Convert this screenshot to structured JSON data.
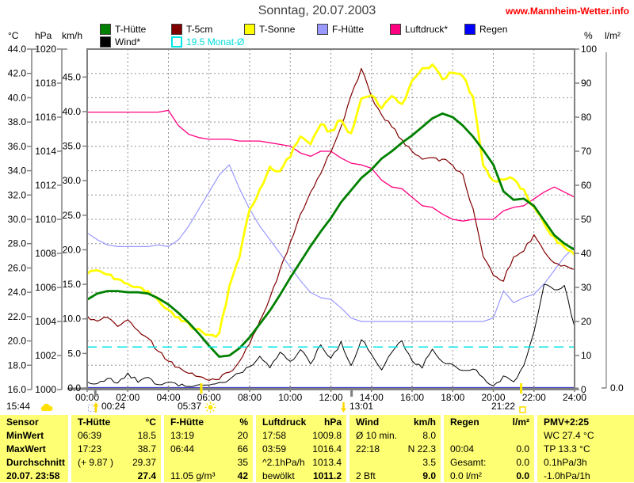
{
  "header": {
    "title": "Sonntag, 20.07.2003",
    "site": "www.Mannheim-Wetter.info"
  },
  "units": {
    "celsius": "°C",
    "hpa": "hPa",
    "kmh": "km/h",
    "percent": "%",
    "lm2": "l/m²"
  },
  "legend": {
    "row1": [
      {
        "label": "T-Hütte",
        "color": "#008000"
      },
      {
        "label": "T-5cm",
        "color": "#800000"
      },
      {
        "label": "T-Sonne",
        "color": "#FFFF00"
      },
      {
        "label": "F-Hütte",
        "color": "#9999FF"
      },
      {
        "label": "Luftdruck*",
        "color": "#FF0080"
      },
      {
        "label": "Regen",
        "color": "#0000FF"
      }
    ],
    "row2": [
      {
        "label": "Wind*",
        "color": "#000000"
      },
      {
        "label": "19.5 Monat-Ø",
        "color": "#00E5E5",
        "open": true,
        "text_color": "#00DDDD"
      }
    ]
  },
  "astro": {
    "moonset": "15:44",
    "events": [
      {
        "time": "00:24",
        "icon": "rise-arrow-icon"
      },
      {
        "time": "05:37",
        "icon": "sun-icon"
      },
      {
        "time": "13:01",
        "icon": "set-arrow-icon"
      },
      {
        "time": "21:22",
        "icon": "open-square-icon"
      }
    ]
  },
  "colors": {
    "axis": "#808080",
    "grid": "#909090",
    "table_bg": "#FFFF73",
    "link_red": "#FF0000",
    "monat_cyan": "#00E5E5"
  },
  "chart_data": {
    "type": "line",
    "title": "Sonntag, 20.07.2003",
    "x_unit": "hours",
    "x_start": 0,
    "x_step": 0.5,
    "x_end": 24,
    "x_tick_labels": [
      "00:00",
      "02:00",
      "04:00",
      "06:00",
      "08:00",
      "10:00",
      "12:00",
      "14:00",
      "16:00",
      "18:00",
      "20:00",
      "22:00",
      "24:00"
    ],
    "axes": {
      "tempC": {
        "unit": "°C",
        "min": 16,
        "max": 44,
        "tick": 2
      },
      "hpa": {
        "unit": "hPa",
        "min": 1000,
        "max": 1020,
        "tick": 2
      },
      "kmh": {
        "unit": "km/h",
        "min": 0,
        "max": 45,
        "tick": 5
      },
      "pct": {
        "unit": "%",
        "min": 0,
        "max": 100,
        "tick": 10
      },
      "lm2": {
        "unit": "l/m²",
        "min": 0,
        "max": 10,
        "bottom_label": "0.0"
      }
    },
    "event_ticks": [
      {
        "hour": 0.4,
        "color": "#808080"
      },
      {
        "hour": 5.62,
        "color": "#FFE800"
      },
      {
        "hour": 13.02,
        "color": "#808080"
      },
      {
        "hour": 21.37,
        "color": "#FFE800"
      }
    ],
    "series": [
      {
        "name": "F-Hütte",
        "axis": "pct",
        "color": "#9999FF",
        "width": 1.2,
        "values": [
          46,
          44,
          42.5,
          42,
          42,
          42,
          42,
          42.5,
          42,
          44,
          48,
          53,
          58,
          63,
          66,
          59,
          53,
          48,
          44,
          40,
          36,
          32,
          28.5,
          27,
          26.5,
          24,
          21,
          20,
          20,
          20,
          20,
          20,
          20,
          20,
          20,
          20,
          20,
          20,
          20,
          20,
          21,
          29,
          25.5,
          27,
          28,
          31,
          35,
          39,
          42
        ]
      },
      {
        "name": "Luftdruck*",
        "axis": "hpa",
        "color": "#FF0080",
        "width": 1.3,
        "values": [
          1016.3,
          1016.3,
          1016.3,
          1016.3,
          1016.3,
          1016.3,
          1016.3,
          1016.3,
          1016.4,
          1015.5,
          1015.0,
          1014.8,
          1014.7,
          1014.7,
          1014.7,
          1014.6,
          1014.6,
          1014.6,
          1014.5,
          1014.4,
          1014.3,
          1013.9,
          1013.7,
          1014.0,
          1014.0,
          1013.6,
          1013.3,
          1013.2,
          1013.0,
          1012.3,
          1011.9,
          1011.8,
          1011.3,
          1010.8,
          1010.7,
          1010.3,
          1010.0,
          1009.9,
          1010.0,
          1010.0,
          1010.0,
          1010.5,
          1010.7,
          1010.8,
          1011.2,
          1011.6,
          1011.9,
          1011.6,
          1011.3
        ]
      },
      {
        "name": "Regen",
        "axis": "lm2",
        "color": "#0000FF",
        "width": 1.2,
        "values": [
          0,
          0,
          0,
          0,
          0,
          0,
          0,
          0,
          0,
          0,
          0,
          0,
          0,
          0,
          0,
          0,
          0,
          0,
          0,
          0,
          0,
          0,
          0,
          0,
          0,
          0,
          0,
          0,
          0,
          0,
          0,
          0,
          0,
          0,
          0,
          0,
          0,
          0,
          0,
          0,
          0,
          0,
          0,
          0,
          0,
          0,
          0,
          0,
          0
        ]
      },
      {
        "name": "T-5cm",
        "axis": "tempC",
        "color": "#800000",
        "width": 1.2,
        "jagged": 3,
        "values": [
          22.0,
          21.6,
          21.9,
          21.2,
          21.7,
          20.9,
          20.3,
          19.2,
          18.4,
          17.8,
          17.4,
          17.1,
          16.8,
          16.9,
          17.4,
          18.4,
          19.8,
          21.6,
          23.6,
          25.8,
          28.2,
          30.4,
          32.3,
          33.8,
          35.6,
          37.6,
          40.2,
          42.4,
          40.1,
          38.6,
          37.6,
          36.6,
          35.6,
          34.9,
          35.1,
          34.9,
          34.4,
          33.6,
          30.8,
          26.9,
          25.4,
          25.0,
          26.9,
          27.4,
          28.7,
          27.4,
          26.5,
          26.2,
          25.9
        ]
      },
      {
        "name": "Wind*",
        "axis": "kmh",
        "color": "#000000",
        "width": 1,
        "jagged": 2.6,
        "values": [
          1.0,
          0.6,
          1.5,
          0.8,
          2.1,
          0.9,
          1.4,
          0.6,
          0.8,
          0.4,
          0.3,
          0.6,
          0.4,
          0.8,
          1.2,
          2.2,
          3.1,
          4.6,
          3.0,
          5.2,
          3.8,
          5.6,
          3.4,
          6.2,
          4.2,
          6.6,
          3.2,
          7.0,
          5.0,
          2.6,
          5.2,
          6.8,
          4.0,
          3.0,
          5.6,
          3.8,
          3.4,
          2.4,
          2.8,
          1.4,
          0.3,
          1.6,
          1.0,
          3.2,
          8.0,
          15.0,
          14.2,
          14.8,
          9.0
        ]
      },
      {
        "name": "T-Sonne",
        "axis": "tempC",
        "color": "#FFFF00",
        "width": 2.8,
        "jagged": 3.2,
        "values": [
          25.5,
          25.8,
          25.5,
          25.1,
          24.7,
          24.5,
          24.1,
          23.3,
          22.6,
          21.9,
          21.4,
          20.9,
          20.4,
          20.6,
          24.5,
          27.0,
          30.8,
          32.5,
          34.3,
          34.0,
          35.2,
          36.8,
          36.2,
          37.8,
          37.2,
          38.2,
          37.0,
          39.9,
          40.1,
          39.2,
          40.1,
          39.4,
          41.4,
          42.4,
          42.7,
          41.6,
          42.1,
          41.7,
          40.1,
          34.5,
          33.1,
          33.3,
          33.3,
          32.4,
          31.0,
          29.7,
          28.5,
          27.7,
          27.2
        ]
      },
      {
        "name": "T-Hütte",
        "axis": "tempC",
        "color": "#008000",
        "width": 2.8,
        "values": [
          23.4,
          23.9,
          24.1,
          24.1,
          24.0,
          24.0,
          23.9,
          23.5,
          23.0,
          22.3,
          21.5,
          20.6,
          19.6,
          18.7,
          18.8,
          19.4,
          20.3,
          21.4,
          22.5,
          23.8,
          25.2,
          26.5,
          27.8,
          29.0,
          30.1,
          31.4,
          32.4,
          33.4,
          34.1,
          35.0,
          35.6,
          36.3,
          36.9,
          37.6,
          38.3,
          38.7,
          38.4,
          37.7,
          36.8,
          35.7,
          34.5,
          32.3,
          31.6,
          31.7,
          31.1,
          29.9,
          28.7,
          28.0,
          27.5
        ]
      },
      {
        "name": "19.5 Monat-Ø",
        "axis": "tempC",
        "color": "#00E5E5",
        "width": 1.6,
        "dashed": true,
        "constant": 19.5
      }
    ]
  },
  "table": {
    "row_headers": [
      "Sensor",
      "MinWert",
      "MaxWert",
      "Durchschnitt",
      "20.07. 23:58"
    ],
    "columns": [
      {
        "header": "T-Hütte",
        "unit": "°C",
        "rows": [
          [
            "06:39",
            "18.5"
          ],
          [
            "17:23",
            "38.7"
          ],
          [
            "(+ 9.87 )",
            "29.37"
          ],
          [
            "",
            "27.4"
          ]
        ]
      },
      {
        "header": "F-Hütte",
        "unit": "%",
        "rows": [
          [
            "13:19",
            "20"
          ],
          [
            "06:44",
            "66"
          ],
          [
            "",
            "35"
          ],
          [
            "11.05 g/m³",
            "42"
          ]
        ]
      },
      {
        "header": "Luftdruck",
        "unit": "hPa",
        "rows": [
          [
            "17:58",
            "1009.8"
          ],
          [
            "03:59",
            "1016.4"
          ],
          [
            "^2.1hPa/h",
            "1013.4"
          ],
          [
            "bewölkt",
            "1011.2"
          ]
        ]
      },
      {
        "header": "Wind",
        "unit": "km/h",
        "rows": [
          [
            "Ø 10 min.",
            "8.0"
          ],
          [
            "22:18",
            "N 22.3"
          ],
          [
            "",
            "3.5"
          ],
          [
            "2 Bft",
            "9.0"
          ]
        ]
      },
      {
        "header": "Regen",
        "unit": "l/m²",
        "rows": [
          [
            "",
            ""
          ],
          [
            "00:04",
            "0.0"
          ],
          [
            "Gesamt:",
            "0.0"
          ],
          [
            "0.0 l/m²",
            "0.0"
          ]
        ]
      },
      {
        "header": "PMV+2:25",
        "unit": "",
        "rows": [
          [
            "WC 27.4 °C",
            ""
          ],
          [
            "TP 13.3 °C",
            ""
          ],
          [
            "0.1hPa/3h",
            ""
          ],
          [
            "-1.0hPa/1h",
            ""
          ]
        ]
      }
    ]
  }
}
